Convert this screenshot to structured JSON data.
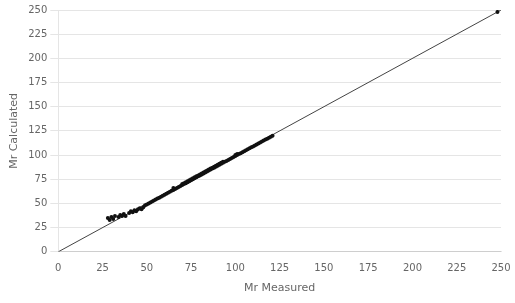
{
  "chart_data": {
    "type": "scatter",
    "xlabel": "Mr Measured",
    "ylabel": "Mr Calculated",
    "xlim": [
      0,
      250
    ],
    "ylim": [
      0,
      250
    ],
    "xticks": [
      0,
      25,
      50,
      75,
      100,
      125,
      150,
      175,
      200,
      225,
      250
    ],
    "yticks": [
      0,
      25,
      50,
      75,
      100,
      125,
      150,
      175,
      200,
      225,
      250
    ],
    "grid": "y",
    "series": [
      {
        "type": "line",
        "color": "#444444",
        "x": [
          0,
          250
        ],
        "values": [
          0,
          250
        ]
      },
      {
        "type": "scatter",
        "color": "#111111",
        "x": [
          28,
          29,
          30,
          31,
          32,
          34,
          35,
          36,
          37,
          38,
          40,
          41,
          42,
          43,
          44,
          45,
          46,
          47,
          48,
          49,
          50,
          51,
          52,
          53,
          54,
          55,
          56,
          57,
          58,
          59,
          60,
          61,
          62,
          63,
          64,
          65,
          65,
          66,
          67,
          68,
          69,
          70,
          70,
          71,
          71,
          72,
          72,
          73,
          73,
          74,
          74,
          75,
          75,
          76,
          76,
          77,
          77,
          78,
          78,
          79,
          79,
          80,
          80,
          81,
          81,
          82,
          82,
          83,
          83,
          84,
          84,
          85,
          85,
          86,
          86,
          87,
          87,
          88,
          88,
          89,
          89,
          90,
          90,
          91,
          91,
          92,
          92,
          93,
          93,
          94,
          95,
          96,
          97,
          98,
          99,
          100,
          100,
          101,
          101,
          102,
          103,
          104,
          105,
          106,
          107,
          108,
          109,
          110,
          111,
          112,
          113,
          114,
          115,
          116,
          117,
          118,
          119,
          120,
          121,
          248
        ],
        "values": [
          35,
          33,
          36,
          34,
          37,
          36,
          38,
          37,
          39,
          37,
          40,
          42,
          41,
          43,
          42,
          44,
          45,
          44,
          46,
          48,
          49,
          50,
          51,
          52,
          53,
          54,
          55,
          56,
          57,
          58,
          59,
          60,
          61,
          62,
          63,
          64,
          66,
          65,
          66,
          67,
          68,
          69,
          70,
          70,
          71,
          71,
          72,
          72,
          73,
          73,
          74,
          74,
          75,
          75,
          76,
          76,
          77,
          77,
          78,
          78,
          79,
          79,
          80,
          80,
          81,
          81,
          82,
          82,
          83,
          83,
          84,
          84,
          85,
          85,
          86,
          86,
          87,
          87,
          88,
          88,
          89,
          89,
          90,
          90,
          91,
          91,
          92,
          92,
          93,
          93,
          94,
          95,
          96,
          97,
          98,
          99,
          100,
          100,
          101,
          101,
          102,
          103,
          104,
          105,
          106,
          107,
          108,
          109,
          110,
          111,
          112,
          113,
          114,
          115,
          116,
          117,
          118,
          119,
          120,
          248
        ]
      }
    ]
  }
}
